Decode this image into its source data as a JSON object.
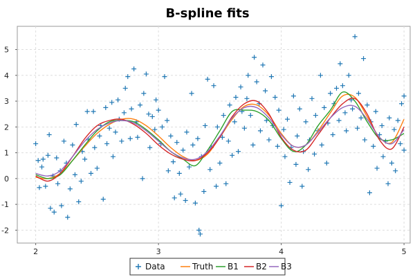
{
  "chart_data": {
    "type": "scatter",
    "title": "B-spline fits",
    "xlabel": "",
    "ylabel": "",
    "xlim": [
      1.85,
      5.05
    ],
    "ylim": [
      -2.5,
      5.9
    ],
    "xticks": [
      2,
      3,
      4,
      5
    ],
    "yticks": [
      -2,
      -1,
      0,
      1,
      2,
      3,
      4,
      5
    ],
    "grid": true,
    "legend_position": "bottom",
    "scatter": {
      "name": "Data",
      "color": "#1f77b4",
      "marker": "plus",
      "points": [
        [
          2.0,
          1.35
        ],
        [
          2.02,
          0.7
        ],
        [
          2.03,
          -0.35
        ],
        [
          2.05,
          0.45
        ],
        [
          2.06,
          0.75
        ],
        [
          2.08,
          -0.3
        ],
        [
          2.1,
          0.9
        ],
        [
          2.11,
          1.7
        ],
        [
          2.12,
          -1.15
        ],
        [
          2.14,
          0.1
        ],
        [
          2.15,
          -1.3
        ],
        [
          2.17,
          0.8
        ],
        [
          2.18,
          -0.2
        ],
        [
          2.2,
          0.3
        ],
        [
          2.21,
          -1.05
        ],
        [
          2.23,
          1.45
        ],
        [
          2.25,
          0.6
        ],
        [
          2.26,
          -1.5
        ],
        [
          2.28,
          -0.4
        ],
        [
          2.3,
          1.3
        ],
        [
          2.32,
          0.15
        ],
        [
          2.33,
          2.1
        ],
        [
          2.35,
          -0.9
        ],
        [
          2.37,
          -0.1
        ],
        [
          2.38,
          1.05
        ],
        [
          2.4,
          0.75
        ],
        [
          2.42,
          2.6
        ],
        [
          2.43,
          1.5
        ],
        [
          2.45,
          0.2
        ],
        [
          2.47,
          2.6
        ],
        [
          2.48,
          1.2
        ],
        [
          2.5,
          0.4
        ],
        [
          2.52,
          1.65
        ],
        [
          2.53,
          2.05
        ],
        [
          2.55,
          -0.8
        ],
        [
          2.57,
          2.75
        ],
        [
          2.58,
          1.35
        ],
        [
          2.6,
          1.95
        ],
        [
          2.62,
          2.95
        ],
        [
          2.63,
          0.85
        ],
        [
          2.65,
          1.8
        ],
        [
          2.67,
          3.05
        ],
        [
          2.68,
          2.3
        ],
        [
          2.7,
          1.45
        ],
        [
          2.72,
          2.55
        ],
        [
          2.73,
          3.5
        ],
        [
          2.75,
          3.95
        ],
        [
          2.77,
          1.55
        ],
        [
          2.78,
          2.7
        ],
        [
          2.8,
          4.25
        ],
        [
          2.82,
          2.2
        ],
        [
          2.83,
          1.6
        ],
        [
          2.85,
          2.85
        ],
        [
          2.87,
          0.0
        ],
        [
          2.88,
          3.3
        ],
        [
          2.9,
          4.05
        ],
        [
          2.92,
          2.5
        ],
        [
          2.93,
          1.2
        ],
        [
          2.95,
          2.4
        ],
        [
          2.97,
          1.9
        ],
        [
          2.98,
          3.05
        ],
        [
          3.0,
          2.65
        ],
        [
          3.02,
          1.35
        ],
        [
          3.03,
          2.0
        ],
        [
          3.05,
          3.95
        ],
        [
          3.07,
          2.25
        ],
        [
          3.08,
          0.3
        ],
        [
          3.1,
          1.65
        ],
        [
          3.12,
          0.65
        ],
        [
          3.13,
          -0.75
        ],
        [
          3.15,
          1.4
        ],
        [
          3.17,
          0.2
        ],
        [
          3.18,
          -0.6
        ],
        [
          3.2,
          1.1
        ],
        [
          3.22,
          -0.85
        ],
        [
          3.23,
          1.8
        ],
        [
          3.25,
          0.45
        ],
        [
          3.27,
          3.3
        ],
        [
          3.28,
          1.3
        ],
        [
          3.3,
          -0.95
        ],
        [
          3.32,
          1.55
        ],
        [
          3.33,
          -2.0
        ],
        [
          3.34,
          -2.15
        ],
        [
          3.35,
          0.85
        ],
        [
          3.37,
          -0.5
        ],
        [
          3.38,
          2.05
        ],
        [
          3.4,
          3.85
        ],
        [
          3.42,
          0.35
        ],
        [
          3.43,
          1.2
        ],
        [
          3.45,
          3.6
        ],
        [
          3.47,
          -0.3
        ],
        [
          3.48,
          2.0
        ],
        [
          3.5,
          0.6
        ],
        [
          3.52,
          1.6
        ],
        [
          3.53,
          2.45
        ],
        [
          3.55,
          -0.2
        ],
        [
          3.57,
          1.45
        ],
        [
          3.58,
          2.85
        ],
        [
          3.6,
          0.9
        ],
        [
          3.62,
          2.2
        ],
        [
          3.63,
          3.15
        ],
        [
          3.65,
          1.05
        ],
        [
          3.67,
          3.55
        ],
        [
          3.68,
          2.6
        ],
        [
          3.7,
          1.95
        ],
        [
          3.72,
          3.1
        ],
        [
          3.73,
          4.0
        ],
        [
          3.75,
          2.45
        ],
        [
          3.77,
          1.3
        ],
        [
          3.78,
          4.7
        ],
        [
          3.8,
          3.75
        ],
        [
          3.82,
          2.9
        ],
        [
          3.83,
          1.85
        ],
        [
          3.85,
          4.4
        ],
        [
          3.87,
          3.4
        ],
        [
          3.88,
          2.25
        ],
        [
          3.9,
          1.5
        ],
        [
          3.92,
          3.95
        ],
        [
          3.93,
          2.05
        ],
        [
          3.95,
          3.15
        ],
        [
          3.97,
          1.25
        ],
        [
          3.98,
          2.65
        ],
        [
          4.0,
          -1.05
        ],
        [
          4.02,
          1.9
        ],
        [
          4.03,
          0.85
        ],
        [
          4.05,
          2.3
        ],
        [
          4.07,
          -0.15
        ],
        [
          4.08,
          1.2
        ],
        [
          4.1,
          3.2
        ],
        [
          4.12,
          0.55
        ],
        [
          4.13,
          1.65
        ],
        [
          4.15,
          2.7
        ],
        [
          4.17,
          -0.3
        ],
        [
          4.18,
          1.05
        ],
        [
          4.2,
          2.2
        ],
        [
          4.22,
          0.35
        ],
        [
          4.23,
          1.5
        ],
        [
          4.25,
          3.1
        ],
        [
          4.27,
          0.95
        ],
        [
          4.28,
          2.45
        ],
        [
          4.3,
          1.85
        ],
        [
          4.32,
          4.0
        ],
        [
          4.33,
          1.3
        ],
        [
          4.35,
          2.75
        ],
        [
          4.37,
          0.6
        ],
        [
          4.38,
          2.15
        ],
        [
          4.4,
          3.3
        ],
        [
          4.42,
          1.7
        ],
        [
          4.43,
          2.9
        ],
        [
          4.45,
          3.5
        ],
        [
          4.47,
          2.25
        ],
        [
          4.48,
          4.45
        ],
        [
          4.5,
          3.6
        ],
        [
          4.52,
          2.55
        ],
        [
          4.53,
          1.85
        ],
        [
          4.55,
          4.0
        ],
        [
          4.57,
          3.05
        ],
        [
          4.58,
          2.7
        ],
        [
          4.6,
          5.5
        ],
        [
          4.62,
          1.95
        ],
        [
          4.63,
          3.3
        ],
        [
          4.65,
          2.35
        ],
        [
          4.67,
          4.65
        ],
        [
          4.68,
          1.5
        ],
        [
          4.7,
          2.85
        ],
        [
          4.72,
          -0.55
        ],
        [
          4.73,
          2.2
        ],
        [
          4.75,
          1.25
        ],
        [
          4.77,
          2.6
        ],
        [
          4.78,
          0.4
        ],
        [
          4.8,
          1.7
        ],
        [
          4.82,
          2.05
        ],
        [
          4.83,
          0.85
        ],
        [
          4.85,
          1.45
        ],
        [
          4.87,
          -0.2
        ],
        [
          4.88,
          2.35
        ],
        [
          4.9,
          0.6
        ],
        [
          4.92,
          1.9
        ],
        [
          4.93,
          0.3
        ],
        [
          4.95,
          2.25
        ],
        [
          4.97,
          1.35
        ],
        [
          4.98,
          2.9
        ],
        [
          5.0,
          1.1
        ],
        [
          5.0,
          3.2
        ]
      ]
    },
    "series": [
      {
        "name": "Truth",
        "color": "#ff7f0e",
        "x": [
          2.0,
          2.1,
          2.2,
          2.3,
          2.4,
          2.5,
          2.6,
          2.7,
          2.8,
          2.9,
          3.0,
          3.1,
          3.2,
          3.3,
          3.4,
          3.5,
          3.6,
          3.7,
          3.8,
          3.9,
          4.0,
          4.1,
          4.2,
          4.3,
          4.4,
          4.5,
          4.6,
          4.7,
          4.8,
          4.9,
          5.0
        ],
        "y": [
          0.05,
          0.0,
          0.2,
          0.7,
          1.25,
          1.75,
          2.1,
          2.3,
          2.3,
          2.05,
          1.65,
          1.2,
          0.85,
          0.7,
          0.95,
          1.6,
          2.3,
          2.8,
          2.85,
          2.45,
          1.75,
          1.25,
          1.3,
          1.85,
          2.55,
          3.2,
          3.15,
          2.4,
          1.6,
          1.4,
          2.3
        ]
      },
      {
        "name": "B1",
        "color": "#2ca02c",
        "x": [
          2.0,
          2.1,
          2.2,
          2.3,
          2.4,
          2.5,
          2.6,
          2.7,
          2.8,
          2.9,
          3.0,
          3.1,
          3.2,
          3.3,
          3.4,
          3.5,
          3.6,
          3.7,
          3.8,
          3.9,
          4.0,
          4.1,
          4.2,
          4.3,
          4.4,
          4.5,
          4.6,
          4.7,
          4.8,
          4.9,
          5.0
        ],
        "y": [
          0.15,
          0.0,
          0.15,
          0.7,
          1.3,
          1.85,
          2.2,
          2.25,
          2.2,
          1.9,
          1.5,
          1.05,
          0.75,
          0.5,
          1.1,
          1.85,
          2.6,
          2.65,
          2.6,
          2.25,
          1.55,
          1.05,
          1.3,
          2.05,
          2.65,
          3.35,
          3.0,
          2.2,
          1.55,
          1.5,
          1.75
        ]
      },
      {
        "name": "B2",
        "color": "#d62728",
        "x": [
          2.0,
          2.1,
          2.2,
          2.3,
          2.4,
          2.5,
          2.6,
          2.7,
          2.8,
          2.9,
          3.0,
          3.1,
          3.2,
          3.3,
          3.4,
          3.5,
          3.6,
          3.7,
          3.8,
          3.9,
          4.0,
          4.1,
          4.2,
          4.3,
          4.4,
          4.5,
          4.6,
          4.7,
          4.8,
          4.9,
          5.0
        ],
        "y": [
          0.1,
          -0.1,
          0.2,
          0.85,
          1.55,
          2.05,
          2.25,
          2.3,
          2.1,
          1.75,
          1.3,
          0.95,
          0.75,
          0.7,
          1.0,
          1.6,
          2.4,
          2.9,
          3.0,
          2.5,
          1.6,
          1.1,
          1.1,
          1.7,
          2.35,
          2.9,
          3.1,
          2.5,
          1.5,
          1.15,
          2.0
        ]
      },
      {
        "name": "B3",
        "color": "#9467bd",
        "x": [
          2.0,
          2.1,
          2.2,
          2.3,
          2.4,
          2.5,
          2.6,
          2.7,
          2.8,
          2.9,
          3.0,
          3.1,
          3.2,
          3.3,
          3.4,
          3.5,
          3.6,
          3.7,
          3.8,
          3.9,
          4.0,
          4.1,
          4.2,
          4.3,
          4.4,
          4.5,
          4.6,
          4.7,
          4.8,
          4.9,
          5.0
        ],
        "y": [
          0.2,
          0.1,
          0.3,
          0.85,
          1.45,
          1.9,
          2.15,
          2.25,
          2.15,
          1.85,
          1.45,
          1.05,
          0.8,
          0.75,
          1.05,
          1.65,
          2.35,
          2.75,
          2.75,
          2.35,
          1.7,
          1.25,
          1.3,
          1.8,
          2.35,
          2.75,
          2.8,
          2.3,
          1.6,
          1.35,
          1.9
        ]
      }
    ],
    "legend": [
      {
        "label": "Data",
        "color": "#1f77b4",
        "kind": "marker"
      },
      {
        "label": "Truth",
        "color": "#ff7f0e",
        "kind": "line"
      },
      {
        "label": "B1",
        "color": "#2ca02c",
        "kind": "line"
      },
      {
        "label": "B2",
        "color": "#d62728",
        "kind": "line"
      },
      {
        "label": "B3",
        "color": "#9467bd",
        "kind": "line"
      }
    ]
  }
}
